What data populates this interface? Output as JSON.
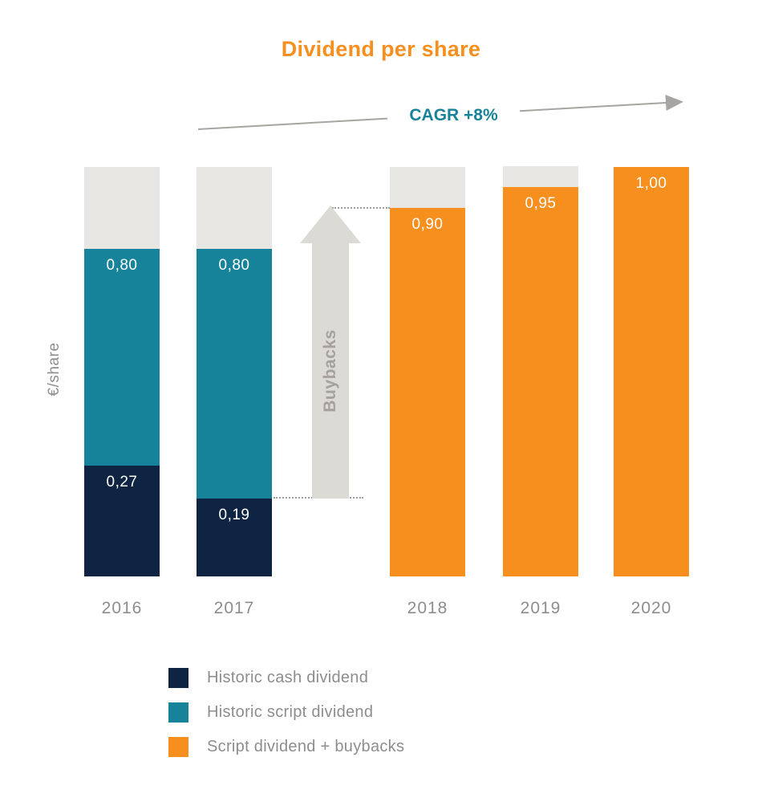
{
  "chart_data": {
    "type": "bar",
    "stacked": true,
    "title": "Dividend per share",
    "ylabel": "€/share",
    "xlabel": "",
    "ylim": [
      0,
      1.0
    ],
    "grid": false,
    "legend_position": "bottom-left",
    "categories": [
      "2016",
      "2017",
      "2018",
      "2019",
      "2020"
    ],
    "annotations": {
      "cagr": "CAGR +8%",
      "buybacks": "Buybacks"
    },
    "bars": [
      {
        "category": "2016",
        "segments": [
          {
            "series": "Historic cash dividend",
            "from": 0,
            "to": 0.27,
            "label": "0,27",
            "color": "navy"
          },
          {
            "series": "Historic script dividend",
            "from": 0.27,
            "to": 0.8,
            "label": "0,80",
            "color": "teal"
          },
          {
            "series": "headroom",
            "from": 0.8,
            "to": 1.0,
            "label": "",
            "color": "cap_gray"
          }
        ]
      },
      {
        "category": "2017",
        "segments": [
          {
            "series": "Historic cash dividend",
            "from": 0,
            "to": 0.19,
            "label": "0,19",
            "color": "navy"
          },
          {
            "series": "Historic script dividend",
            "from": 0.19,
            "to": 0.8,
            "label": "0,80",
            "color": "teal"
          },
          {
            "series": "headroom",
            "from": 0.8,
            "to": 1.0,
            "label": "",
            "color": "cap_gray"
          }
        ]
      },
      {
        "category": "2018",
        "segments": [
          {
            "series": "Script dividend + buybacks",
            "from": 0,
            "to": 0.9,
            "label": "0,90",
            "color": "orange"
          },
          {
            "series": "headroom",
            "from": 0.9,
            "to": 1.0,
            "label": "",
            "color": "cap_gray"
          }
        ]
      },
      {
        "category": "2019",
        "segments": [
          {
            "series": "Script dividend + buybacks",
            "from": 0,
            "to": 0.95,
            "label": "0,95",
            "color": "orange"
          },
          {
            "series": "headroom",
            "from": 0.95,
            "to": 1.0,
            "label": "",
            "color": "cap_gray"
          }
        ]
      },
      {
        "category": "2020",
        "segments": [
          {
            "series": "Script dividend + buybacks",
            "from": 0,
            "to": 1.0,
            "label": "1,00",
            "color": "orange"
          }
        ]
      }
    ]
  },
  "legend": {
    "items": [
      {
        "label": "Historic cash dividend",
        "color": "navy"
      },
      {
        "label": "Historic script dividend",
        "color": "teal"
      },
      {
        "label": "Script dividend + buybacks",
        "color": "orange"
      }
    ]
  },
  "colors": {
    "navy": "#0e2442",
    "teal": "#16839a",
    "orange": "#f78f1e",
    "cap_gray": "#e8e6e2",
    "title_orange": "#f78f1e",
    "cagr_teal": "#16839a",
    "text_gray": "#8d8d8d",
    "arrow_gray": "#dcdad5",
    "arrow_text_gray": "#a5a29e",
    "dotted_gray": "#9a9a98",
    "cagr_line_gray": "#a7a5a1"
  }
}
